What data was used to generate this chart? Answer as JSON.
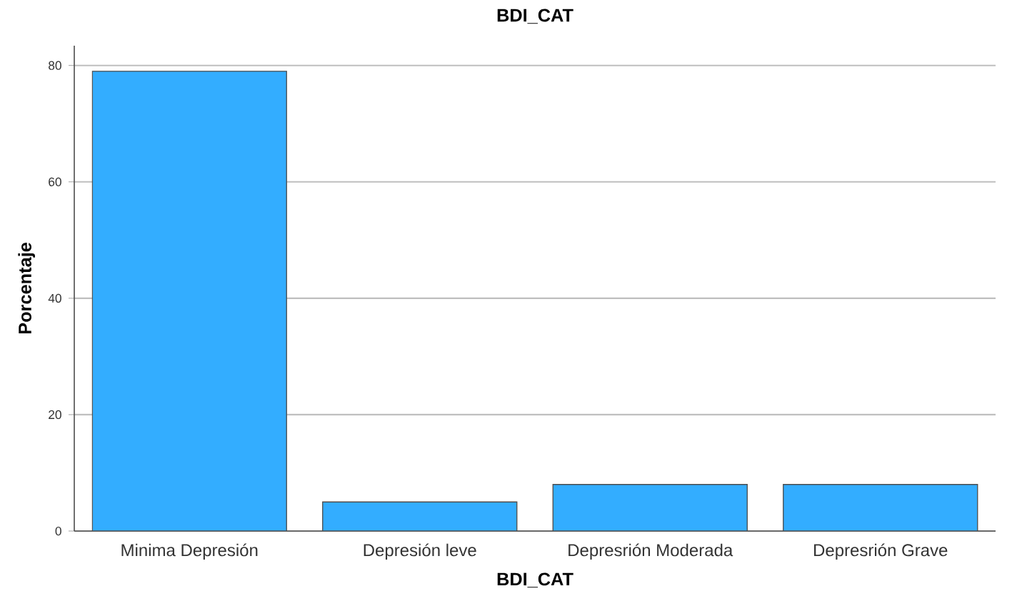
{
  "chart_data": {
    "type": "bar",
    "title": "BDI_CAT",
    "xlabel": "BDI_CAT",
    "ylabel": "Porcentaje",
    "categories": [
      "Minima Depresión",
      "Depresión leve",
      "Depresrión Moderada",
      "Depresrión Grave"
    ],
    "values": [
      79,
      5,
      8,
      8
    ],
    "color": "#33adff",
    "ylim": [
      0,
      83.4
    ],
    "yticks": [
      0,
      20,
      40,
      60,
      80
    ],
    "grid": "y"
  }
}
